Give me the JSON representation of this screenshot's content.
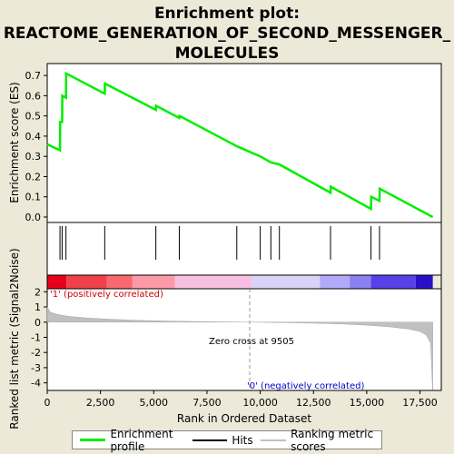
{
  "chart_data": {
    "type": "line",
    "title_lines": [
      "Enrichment plot:",
      "REACTOME_GENERATION_OF_SECOND_MESSENGER_",
      "MOLECULES"
    ],
    "es_panel": {
      "ylabel": "Enrichment score (ES)",
      "ylim": [
        0,
        0.75
      ],
      "yticks": [
        "0.0",
        "0.1",
        "0.2",
        "0.3",
        "0.4",
        "0.5",
        "0.6",
        "0.7"
      ],
      "series": [
        {
          "name": "Enrichment profile",
          "color": "#00ee00",
          "points": [
            [
              0,
              0.36
            ],
            [
              600,
              0.33
            ],
            [
              610,
              0.47
            ],
            [
              700,
              0.47
            ],
            [
              710,
              0.6
            ],
            [
              880,
              0.59
            ],
            [
              890,
              0.71
            ],
            [
              2700,
              0.61
            ],
            [
              2710,
              0.66
            ],
            [
              5100,
              0.53
            ],
            [
              5110,
              0.55
            ],
            [
              6200,
              0.49
            ],
            [
              6210,
              0.5
            ],
            [
              8900,
              0.35
            ],
            [
              10000,
              0.3
            ],
            [
              10500,
              0.27
            ],
            [
              10900,
              0.26
            ],
            [
              13300,
              0.12
            ],
            [
              13310,
              0.15
            ],
            [
              15200,
              0.04
            ],
            [
              15210,
              0.1
            ],
            [
              15600,
              0.08
            ],
            [
              15610,
              0.14
            ],
            [
              18100,
              0.0
            ]
          ]
        }
      ]
    },
    "hits": {
      "name": "Hits",
      "positions": [
        600,
        700,
        880,
        2700,
        5100,
        6200,
        8900,
        10000,
        10500,
        10900,
        13300,
        15200,
        15600
      ]
    },
    "ranked_metric": {
      "name": "Ranking metric scores",
      "ylabel": "Ranked list metric (Signal2Noise)",
      "ylim": [
        -4.5,
        2.2
      ],
      "yticks": [
        "2",
        "1",
        "0",
        "-1",
        "-2",
        "-3",
        "-4"
      ],
      "curve": [
        [
          0,
          1.0
        ],
        [
          150,
          0.65
        ],
        [
          500,
          0.5
        ],
        [
          1000,
          0.38
        ],
        [
          2000,
          0.26
        ],
        [
          3000,
          0.19
        ],
        [
          4000,
          0.13
        ],
        [
          5000,
          0.09
        ],
        [
          6000,
          0.06
        ],
        [
          7000,
          0.04
        ],
        [
          8000,
          0.02
        ],
        [
          9505,
          0.0
        ],
        [
          11000,
          -0.03
        ],
        [
          12500,
          -0.07
        ],
        [
          14000,
          -0.13
        ],
        [
          15000,
          -0.2
        ],
        [
          16000,
          -0.3
        ],
        [
          17000,
          -0.46
        ],
        [
          17500,
          -0.62
        ],
        [
          17800,
          -0.85
        ],
        [
          18000,
          -1.4
        ],
        [
          18050,
          -3.0
        ],
        [
          18090,
          -4.45
        ],
        [
          18100,
          -4.45
        ]
      ],
      "pos_label": "'1' (positively correlated)",
      "neg_label": "'0' (negatively correlated)",
      "zero_cross_label": "Zero cross at 9505",
      "zero_cross": 9505
    },
    "xaxis": {
      "label": "Rank in Ordered Dataset",
      "xlim": [
        0,
        18500
      ],
      "ticks": [
        "0",
        "2,500",
        "5,000",
        "7,500",
        "10,000",
        "12,500",
        "15,000",
        "17,500"
      ]
    },
    "heat_band": [
      {
        "from": 0,
        "to": 900,
        "color": "#e8001a"
      },
      {
        "from": 900,
        "to": 2800,
        "color": "#f0404a"
      },
      {
        "from": 2800,
        "to": 4000,
        "color": "#f86870"
      },
      {
        "from": 4000,
        "to": 6000,
        "color": "#fc9aa8"
      },
      {
        "from": 6000,
        "to": 9600,
        "color": "#f8c0e0"
      },
      {
        "from": 9600,
        "to": 12800,
        "color": "#d8d4f8"
      },
      {
        "from": 12800,
        "to": 14200,
        "color": "#b0aaf8"
      },
      {
        "from": 14200,
        "to": 15200,
        "color": "#8a80f0"
      },
      {
        "from": 15200,
        "to": 17300,
        "color": "#5a40e8"
      },
      {
        "from": 17300,
        "to": 18100,
        "color": "#2a10c8"
      }
    ],
    "legend": [
      {
        "label": "Enrichment profile",
        "color": "#00ee00",
        "kind": "line"
      },
      {
        "label": "Hits",
        "color": "#000000",
        "kind": "line"
      },
      {
        "label": "Ranking metric scores",
        "color": "#c0c0c0",
        "kind": "line"
      }
    ]
  }
}
